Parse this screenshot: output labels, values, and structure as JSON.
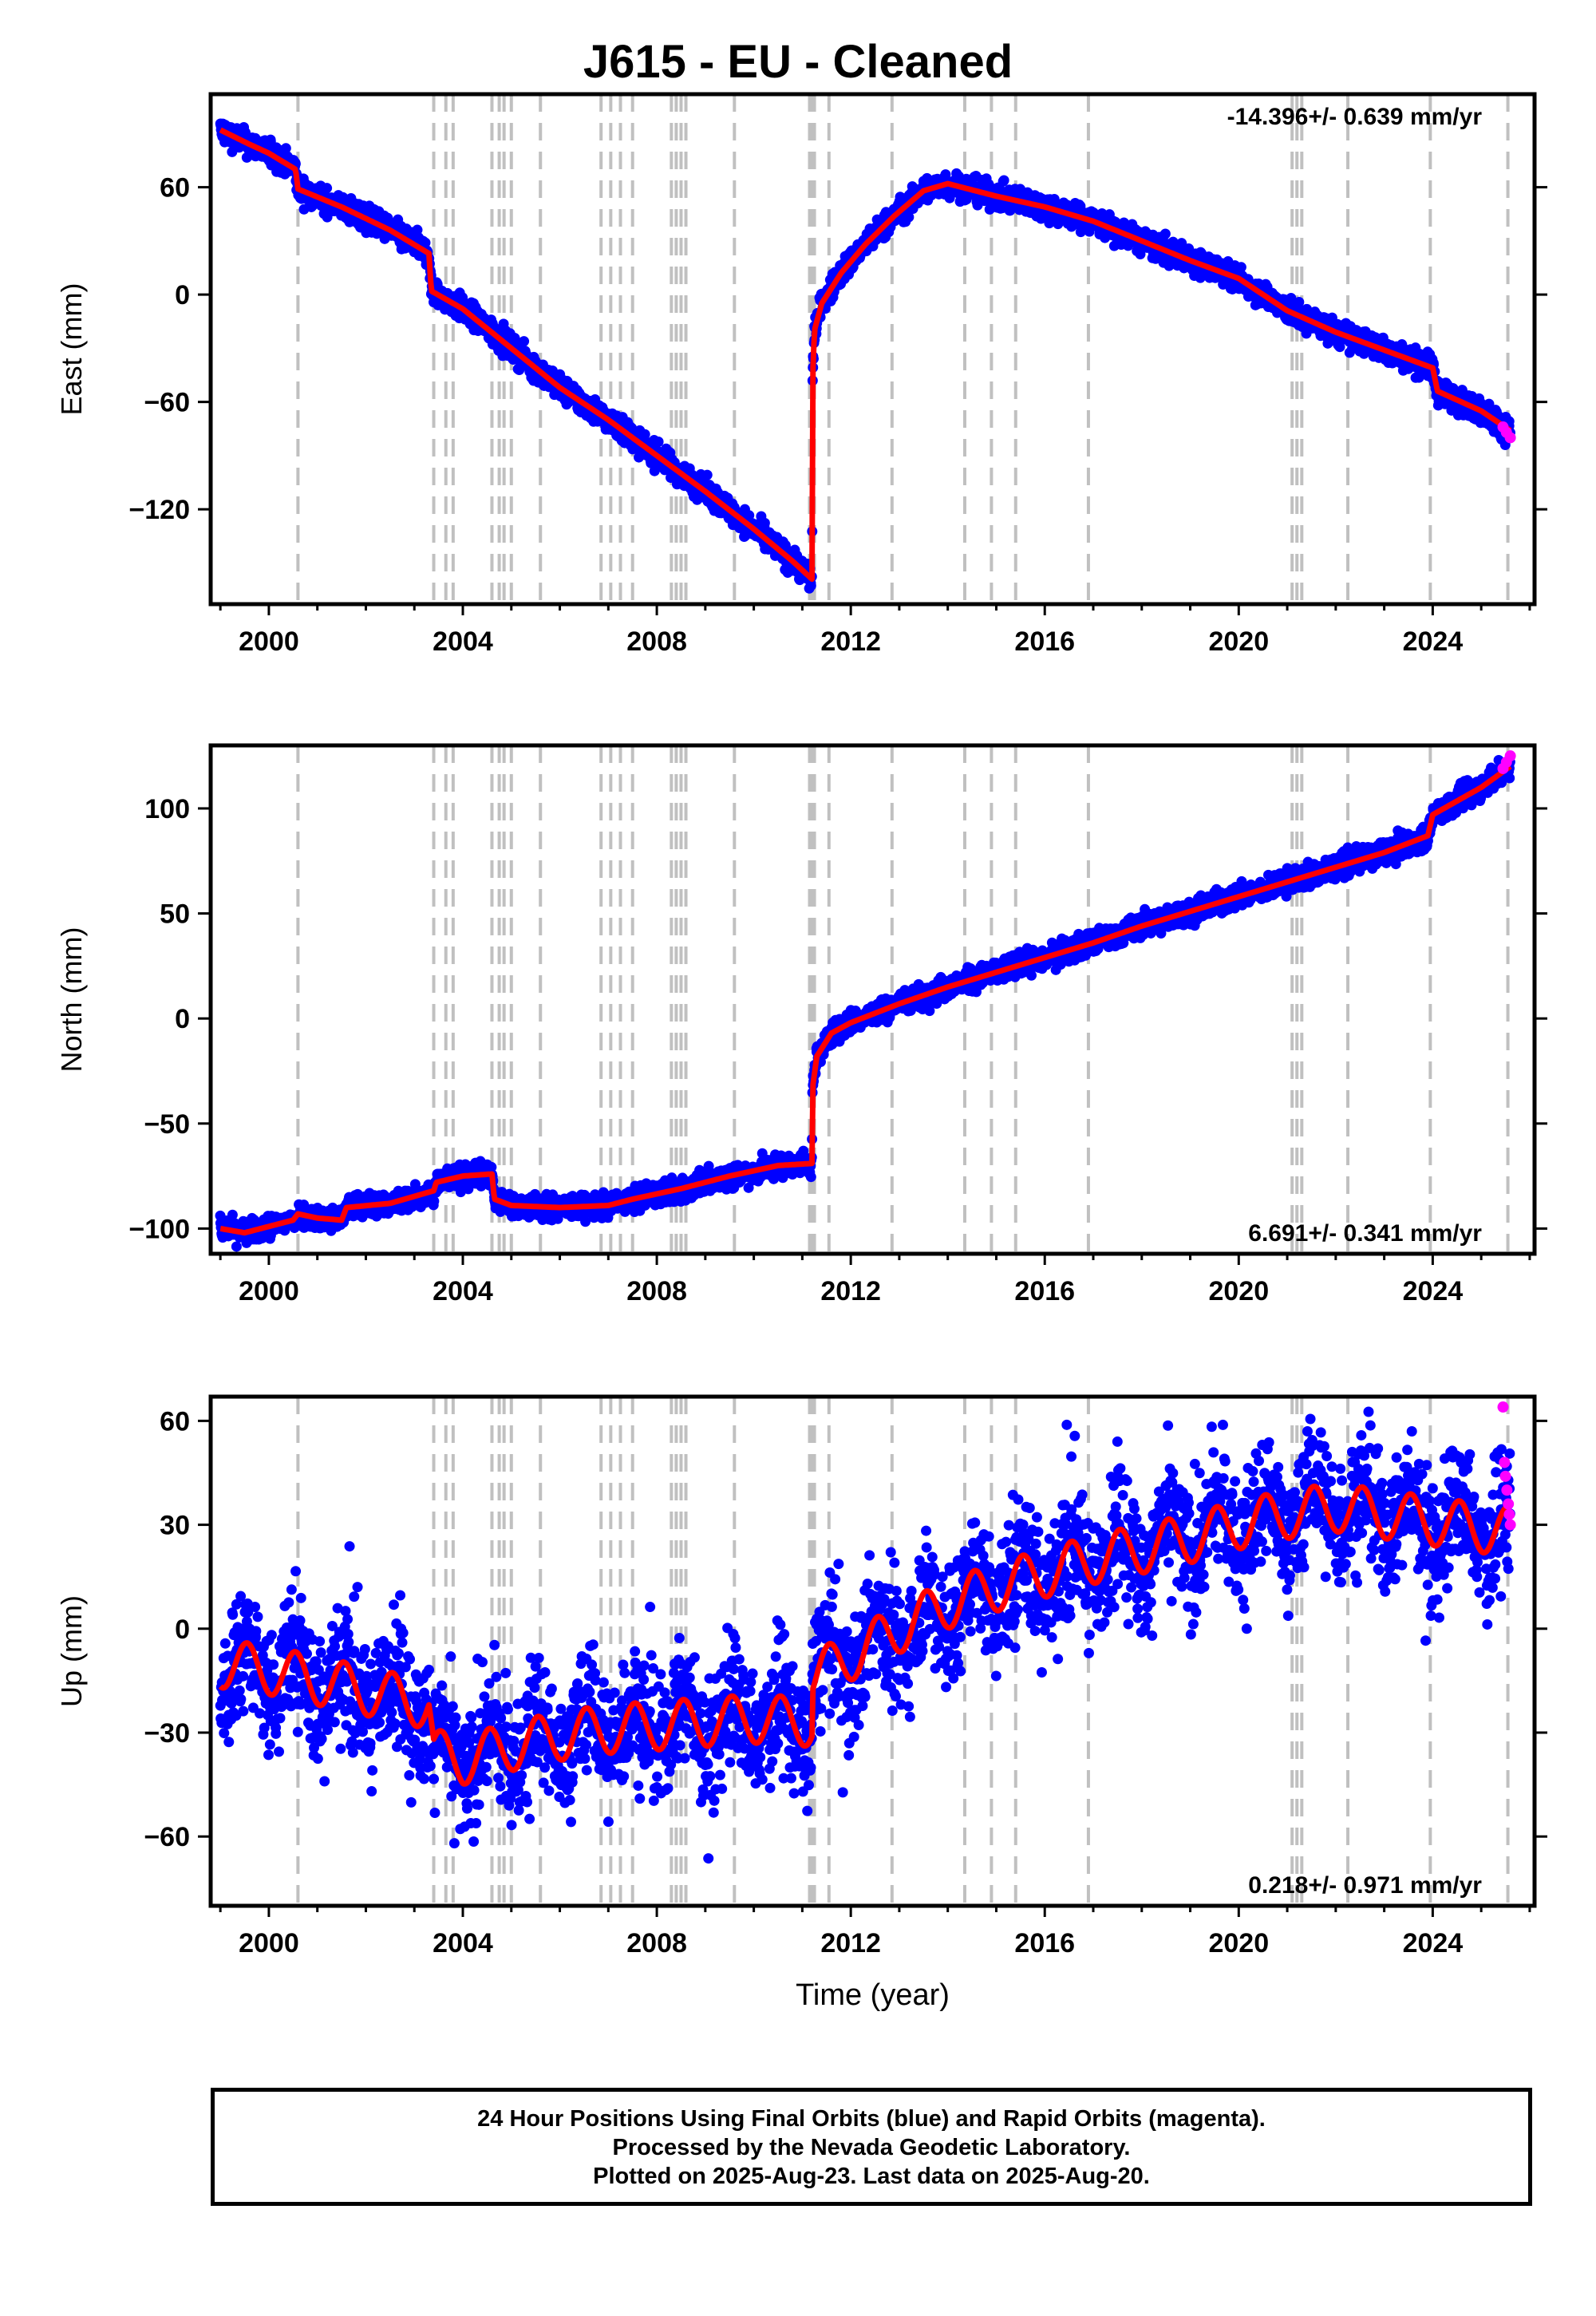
{
  "title": "J615  - EU - Cleaned",
  "footer": {
    "line1": "24 Hour Positions Using Final Orbits (blue) and Rapid Orbits (magenta).",
    "line2": "Processed by the Nevada Geodetic Laboratory.",
    "line3": "Plotted on 2025-Aug-23. Last data on 2025-Aug-20."
  },
  "colors": {
    "final_orbits": "#0000ff",
    "rapid_orbits": "#ff00ff",
    "model": "#ff0000",
    "event_lines": "#c0c0c0"
  },
  "chart_data": [
    {
      "type": "scatter",
      "panel": "east",
      "ylabel": "East (mm)",
      "xlabel": "",
      "rate_label": "-14.396+/- 0.639 mm/yr",
      "rate_label_position": "top-right",
      "xlim": [
        1998.8,
        2026.1
      ],
      "ylim": [
        -173,
        112
      ],
      "xticks": [
        2000,
        2004,
        2008,
        2012,
        2016,
        2020,
        2024
      ],
      "yticks": [
        60,
        0,
        -60,
        -120
      ],
      "noise_amplitude": 3.5,
      "model_x": [
        1999.0,
        1999.6,
        2000.0,
        2000.55,
        2000.6,
        2001.5,
        2002.5,
        2003.3,
        2003.35,
        2004.0,
        2005.0,
        2006.0,
        2007.0,
        2008.0,
        2009.0,
        2010.0,
        2010.8,
        2011.2,
        2011.21,
        2011.25,
        2011.4,
        2011.8,
        2012.3,
        2012.9,
        2013.5,
        2014.0,
        2015.0,
        2016.0,
        2017.0,
        2018.0,
        2019.0,
        2020.0,
        2021.0,
        2022.0,
        2023.0,
        2024.0,
        2024.1,
        2025.0,
        2025.6
      ],
      "model_y": [
        92,
        84,
        79,
        70,
        59,
        49,
        36,
        23,
        2,
        -8,
        -30,
        -52,
        -70,
        -90,
        -110,
        -131,
        -149,
        -159,
        -48,
        -20,
        -5,
        12,
        28,
        44,
        58,
        62,
        55,
        49,
        41,
        30,
        19,
        9,
        -9,
        -21,
        -31,
        -41,
        -54,
        -65,
        -76
      ],
      "rapid_orbits_x": [
        2025.45,
        2025.52,
        2025.6
      ],
      "rapid_orbits_y": [
        -74,
        -77,
        -80
      ],
      "event_lines_x": [
        2000.6,
        2003.4,
        2003.65,
        2003.8,
        2004.6,
        2004.75,
        2004.85,
        2005.0,
        2005.6,
        2006.85,
        2007.05,
        2007.25,
        2007.5,
        2008.3,
        2008.4,
        2008.5,
        2008.6,
        2009.6,
        2011.15,
        2011.2,
        2011.25,
        2011.55,
        2012.85,
        2014.35,
        2014.9,
        2015.4,
        2016.9,
        2021.1,
        2021.2,
        2021.3,
        2022.25,
        2023.95,
        2025.55
      ]
    },
    {
      "type": "scatter",
      "panel": "north",
      "ylabel": "North (mm)",
      "xlabel": "",
      "rate_label": "6.691+/- 0.341 mm/yr",
      "rate_label_position": "bottom-right",
      "xlim": [
        1998.8,
        2026.1
      ],
      "ylim": [
        -112,
        130
      ],
      "xticks": [
        2000,
        2004,
        2008,
        2012,
        2016,
        2020,
        2024
      ],
      "yticks": [
        100,
        50,
        0,
        -50,
        -100
      ],
      "noise_amplitude": 2.8,
      "model_x": [
        1999.0,
        1999.5,
        2000.5,
        2000.6,
        2001.0,
        2001.5,
        2001.6,
        2002.5,
        2003.4,
        2003.45,
        2004.0,
        2004.6,
        2004.65,
        2005.0,
        2006.0,
        2007.0,
        2007.5,
        2008.5,
        2009.5,
        2010.5,
        2011.2,
        2011.21,
        2011.3,
        2011.6,
        2012.0,
        2013.0,
        2014.0,
        2015.0,
        2016.0,
        2017.0,
        2018.0,
        2019.0,
        2020.0,
        2021.0,
        2022.0,
        2023.0,
        2023.9,
        2024.0,
        2025.0,
        2025.6
      ],
      "model_y": [
        -100,
        -102,
        -96,
        -93,
        -95,
        -96,
        -90,
        -88,
        -82,
        -78,
        -75,
        -74,
        -86,
        -89,
        -90,
        -89,
        -86,
        -81,
        -75,
        -70,
        -69,
        -33,
        -18,
        -7,
        -2,
        7,
        15,
        22,
        29,
        36,
        44,
        51,
        58,
        65,
        72,
        79,
        87,
        97,
        110,
        120
      ],
      "rapid_orbits_x": [
        2025.45,
        2025.52,
        2025.6
      ],
      "rapid_orbits_y": [
        119,
        122,
        125
      ],
      "event_lines_x": [
        2000.6,
        2003.4,
        2003.65,
        2003.8,
        2004.6,
        2004.75,
        2004.85,
        2005.0,
        2005.6,
        2006.85,
        2007.05,
        2007.25,
        2007.5,
        2008.3,
        2008.4,
        2008.5,
        2008.6,
        2009.6,
        2011.15,
        2011.2,
        2011.25,
        2011.55,
        2012.85,
        2014.35,
        2014.9,
        2015.4,
        2016.9,
        2021.1,
        2021.2,
        2021.3,
        2022.25,
        2023.95,
        2025.55
      ]
    },
    {
      "type": "scatter",
      "panel": "up",
      "ylabel": "Up (mm)",
      "xlabel": "Time (year)",
      "rate_label": "0.218+/- 0.971 mm/yr",
      "rate_label_position": "bottom-right",
      "xlim": [
        1998.8,
        2026.1
      ],
      "ylim": [
        -80,
        67
      ],
      "xticks": [
        2000,
        2004,
        2008,
        2012,
        2016,
        2020,
        2024
      ],
      "yticks": [
        60,
        30,
        0,
        -30,
        -60
      ],
      "noise_amplitude": 9,
      "seasonal_amplitude": 7,
      "model_x": [
        1999.0,
        2000.0,
        2001.0,
        2002.0,
        2003.3,
        2003.4,
        2004.0,
        2005.0,
        2006.0,
        2007.0,
        2008.0,
        2009.0,
        2010.0,
        2011.2,
        2011.21,
        2012.0,
        2013.0,
        2014.0,
        2015.0,
        2016.0,
        2017.0,
        2018.0,
        2019.0,
        2020.0,
        2021.0,
        2022.0,
        2023.0,
        2024.0,
        2025.0,
        2025.6
      ],
      "model_y": [
        -10,
        -12,
        -15,
        -18,
        -22,
        -36,
        -38,
        -34,
        -31,
        -29,
        -28,
        -27,
        -26,
        -27,
        -14,
        -8,
        0,
        7,
        12,
        16,
        20,
        23,
        26,
        30,
        33,
        35,
        33,
        31,
        29,
        28
      ],
      "rapid_orbits_x": [
        2025.45,
        2025.48,
        2025.5,
        2025.53,
        2025.56,
        2025.58,
        2025.6
      ],
      "rapid_orbits_y": [
        64,
        48,
        44,
        40,
        36,
        33,
        30
      ],
      "event_lines_x": [
        2000.6,
        2003.4,
        2003.65,
        2003.8,
        2004.6,
        2004.75,
        2004.85,
        2005.0,
        2005.6,
        2006.85,
        2007.05,
        2007.25,
        2007.5,
        2008.3,
        2008.4,
        2008.5,
        2008.6,
        2009.6,
        2011.15,
        2011.2,
        2011.25,
        2011.55,
        2012.85,
        2014.35,
        2014.9,
        2015.4,
        2016.9,
        2021.1,
        2021.2,
        2021.3,
        2022.25,
        2023.95,
        2025.55
      ]
    }
  ]
}
